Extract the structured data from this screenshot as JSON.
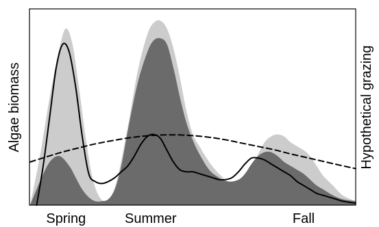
{
  "chart_data": {
    "type": "area",
    "title": "",
    "xlabel": "",
    "ylabel": "Algae biomass",
    "ylabel_right": "Hypothetical grazing",
    "categories": [
      "Spring",
      "Summer",
      "Fall"
    ],
    "xlim": [
      0,
      100
    ],
    "ylim": [
      0,
      100
    ],
    "grid": false,
    "legend": "none",
    "colors": {
      "light_area": "#cccccc",
      "dark_area": "#6b6b6b",
      "solid_line": "#000000",
      "dashed_line": "#000000",
      "frame": "#000000",
      "background": "#ffffff"
    },
    "category_positions": [
      11,
      37,
      84
    ],
    "series": [
      {
        "kind": "area",
        "x": [
          0,
          3,
          6,
          9,
          11,
          13,
          15,
          17,
          19,
          21,
          23,
          25,
          27,
          30,
          33,
          36,
          38,
          40,
          42,
          44,
          46,
          48,
          50,
          52,
          55,
          58,
          61,
          64,
          66,
          68,
          70,
          72,
          74,
          76,
          78,
          80,
          82,
          84,
          86,
          88,
          90,
          93,
          96,
          100
        ],
        "y": [
          0,
          25,
          55,
          80,
          90,
          82,
          60,
          35,
          15,
          5,
          2,
          5,
          15,
          40,
          68,
          87,
          93,
          94,
          90,
          80,
          65,
          48,
          36,
          30,
          22,
          16,
          12,
          12,
          15,
          20,
          26,
          32,
          35,
          36,
          35,
          32,
          30,
          28,
          25,
          20,
          15,
          10,
          5,
          2
        ]
      },
      {
        "kind": "area",
        "x": [
          0,
          3,
          6,
          9,
          12,
          14,
          16,
          18,
          20,
          22,
          24,
          26,
          28,
          30,
          33,
          36,
          38,
          40,
          42,
          44,
          46,
          48,
          50,
          52,
          55,
          58,
          61,
          64,
          66,
          68,
          70,
          72,
          74,
          76,
          78,
          80,
          82,
          84,
          86,
          88,
          90,
          93,
          96,
          100
        ],
        "y": [
          0,
          12,
          22,
          25,
          20,
          14,
          8,
          4,
          2,
          2,
          3,
          8,
          20,
          38,
          62,
          78,
          84,
          85,
          82,
          70,
          55,
          42,
          33,
          26,
          18,
          14,
          12,
          13,
          16,
          21,
          25,
          27,
          27,
          25,
          22,
          20,
          18,
          16,
          13,
          10,
          8,
          5,
          3,
          2
        ]
      },
      {
        "kind": "line",
        "style": "solid",
        "x": [
          2,
          4,
          6,
          8,
          10,
          12,
          14,
          16,
          18,
          20,
          22,
          24,
          26,
          28,
          30,
          32,
          34,
          36,
          38,
          40,
          42,
          44,
          46,
          48,
          50,
          52,
          54,
          56,
          58,
          60,
          62,
          64,
          66,
          68,
          70,
          72,
          74,
          76,
          78,
          80,
          82,
          84,
          86,
          88,
          90,
          92,
          94,
          96,
          100
        ],
        "y": [
          0,
          20,
          45,
          70,
          82,
          78,
          60,
          35,
          16,
          12,
          11,
          12,
          14,
          17,
          20,
          25,
          31,
          35,
          36,
          34,
          28,
          22,
          18,
          17,
          17,
          16,
          15,
          14,
          13,
          13,
          14,
          17,
          21,
          24,
          24,
          23,
          21,
          19,
          17,
          15,
          12,
          10,
          8,
          6,
          5,
          4,
          3,
          2,
          1
        ]
      },
      {
        "kind": "line",
        "style": "dashed",
        "x": [
          0,
          5,
          10,
          15,
          20,
          25,
          30,
          35,
          40,
          45,
          50,
          55,
          60,
          65,
          70,
          75,
          80,
          85,
          90,
          95,
          100
        ],
        "y": [
          22,
          24.6,
          27.1,
          29.2,
          31.2,
          32.8,
          34.2,
          35.2,
          35.7,
          35.8,
          35.4,
          34.6,
          33.3,
          31.6,
          29.9,
          28.2,
          26.1,
          24.2,
          22.3,
          20.4,
          18.6
        ]
      }
    ]
  }
}
